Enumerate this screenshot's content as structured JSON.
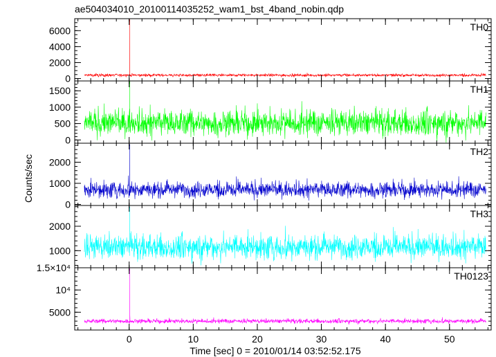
{
  "chart_data": {
    "type": "line",
    "title": "ae504034010_20100114035252_wam1_bst_4band_nobin.qdp",
    "xlabel": "Time [sec] 0 = 2010/01/14 03:52:52.175",
    "ylabel": "Counts/sec",
    "xlim": [
      -8.5,
      56.5
    ],
    "x_ticks": [
      0,
      10,
      20,
      30,
      40,
      50
    ],
    "x_tick_labels": [
      "0",
      "10",
      "20",
      "30",
      "40",
      "50"
    ],
    "x_minor_step": 2,
    "panels": [
      {
        "name": "TH0",
        "color": "#ff0000",
        "ylim": [
          -300,
          7500
        ],
        "y_ticks": [
          0,
          2000,
          4000,
          6000
        ],
        "y_tick_labels": [
          "0",
          "2000",
          "4000",
          "6000"
        ],
        "y_minor_step": 500,
        "baseline": 420,
        "noise": 520,
        "burst_time": 0.1,
        "burst_peak": 7400
      },
      {
        "name": "TH1",
        "color": "#00ff00",
        "ylim": [
          -100,
          1800
        ],
        "y_ticks": [
          0,
          500,
          1000,
          1500
        ],
        "y_tick_labels": [
          "0",
          "500",
          "1000",
          "1500"
        ],
        "y_minor_step": 100,
        "baseline": 520,
        "noise": 1200,
        "burst_time": 0.1,
        "burst_peak": 1800
      },
      {
        "name": "TH2",
        "color": "#0000cd",
        "ylim": [
          -50,
          2900
        ],
        "y_ticks": [
          0,
          1000,
          2000
        ],
        "y_tick_labels": [
          "0",
          "1000",
          "2000"
        ],
        "y_minor_step": 200,
        "baseline": 700,
        "noise": 1150,
        "burst_time": 0.1,
        "burst_peak": 2850
      },
      {
        "name": "TH3",
        "color": "#00ffff",
        "ylim": [
          300,
          2850
        ],
        "y_ticks": [
          1000,
          2000
        ],
        "y_tick_labels": [
          "1000",
          "2000"
        ],
        "y_minor_step": 200,
        "baseline": 1150,
        "noise": 1500,
        "burst_time": 0.1,
        "burst_peak": 2800
      },
      {
        "name": "TH0123",
        "color": "#ff00ff",
        "ylim": [
          1000,
          15000
        ],
        "y_ticks": [
          5000,
          10000,
          15000
        ],
        "y_tick_labels": [
          "5000",
          "10⁴",
          "1.5×10⁴"
        ],
        "y_minor_step": 1000,
        "baseline": 3000,
        "noise": 1500,
        "burst_time": 0.1,
        "burst_peak": 14800
      }
    ],
    "grid": false,
    "legend": "none"
  }
}
